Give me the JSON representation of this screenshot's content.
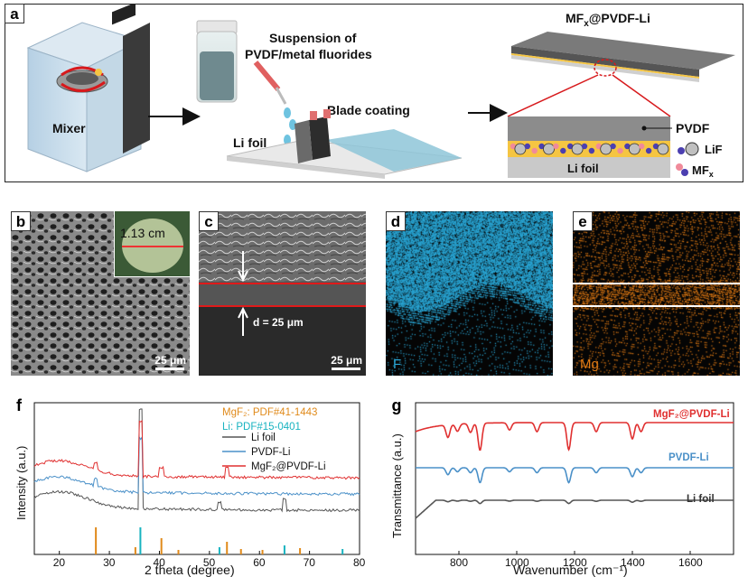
{
  "panel_a": {
    "label": "a",
    "mixer_label": "Mixer",
    "suspension_label_line1": "Suspension of",
    "suspension_label_line2": "PVDF/metal fluorides",
    "blade_label": "Blade coating",
    "lifoil_label": "Li foil",
    "product_label_prefix": "MF",
    "product_label_sub": "x",
    "product_label_suffix": "@PVDF-Li",
    "legend_pvdf": "PVDF",
    "legend_lif": "LiF",
    "legend_mfx_prefix": "MF",
    "legend_mfx_sub": "x",
    "cross_section_lifoil": "Li foil",
    "colors": {
      "pvdf_gray": "#8c8c8c",
      "fluoride_yellow": "#f5c542",
      "lifoil_gray": "#c9c9c9",
      "mfx_pink": "#f08a9a",
      "lif_purple": "#4b3fb0",
      "arrow_red": "#d7191c"
    }
  },
  "panel_b": {
    "label": "b",
    "inset_text": "1.13 cm",
    "scalebar": "25 μm"
  },
  "panel_c": {
    "label": "c",
    "thickness_text": "d = 25 μm",
    "scalebar": "25 μm"
  },
  "panel_d": {
    "label": "d",
    "element": "F",
    "color": "#2aa7d6"
  },
  "panel_e": {
    "label": "e",
    "element": "Mg",
    "color": "#e07a14"
  },
  "panel_f": {
    "label": "f",
    "chart_data": {
      "type": "line",
      "xlabel": "2 theta (degree)",
      "ylabel": "Intensity (a.u.)",
      "xlim": [
        15,
        80
      ],
      "xticks": [
        20,
        30,
        40,
        50,
        60,
        70,
        80
      ],
      "ref_mgf2": "MgF₂: PDF#41-1443",
      "ref_li": "Li: PDF#15-0401",
      "ref_mgf2_peaks": [
        27.3,
        35.2,
        40.4,
        43.8,
        53.5,
        56.3,
        60.6,
        68.1
      ],
      "ref_li_peaks": [
        36.2,
        52.0,
        65.0,
        76.6
      ],
      "series": [
        {
          "name": "Li foil",
          "color": "#555555"
        },
        {
          "name": "PVDF-Li",
          "color": "#4a90c8"
        },
        {
          "name": "MgF₂@PVDF-Li",
          "color": "#e03030"
        }
      ]
    }
  },
  "panel_g": {
    "label": "g",
    "chart_data": {
      "type": "line",
      "xlabel": "Wavenumber (cm⁻¹)",
      "ylabel": "Transmittance (a.u.)",
      "xlim": [
        650,
        1750
      ],
      "xticks": [
        800,
        1000,
        1200,
        1400,
        1600
      ],
      "series": [
        {
          "name": "MgF₂@PVDF-Li",
          "color": "#e03030"
        },
        {
          "name": "PVDF-Li",
          "color": "#4a90c8"
        },
        {
          "name": "Li foil",
          "color": "#555555"
        }
      ]
    }
  }
}
